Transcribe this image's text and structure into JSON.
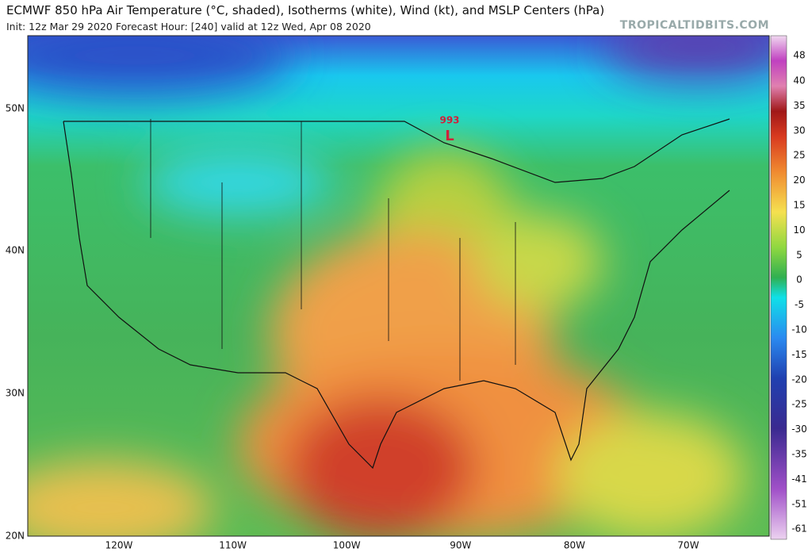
{
  "header": {
    "title": "ECMWF 850 hPa Air Temperature (°C, shaded), Isotherms (white), Wind (kt), and MSLP Centers (hPa)",
    "subtitle": "Init: 12z Mar 29 2020   Forecast Hour: [240]   valid at 12z Wed, Apr 08 2020",
    "watermark": "TROPICALTIDBITS.COM"
  },
  "map": {
    "latitude_labels": [
      "50N",
      "40N",
      "30N",
      "20N"
    ],
    "longitude_labels": [
      "120W",
      "110W",
      "100W",
      "90W",
      "80W",
      "70W"
    ],
    "low_center": {
      "pressure": "993",
      "symbol": "L"
    }
  },
  "colorbar": {
    "labels": [
      48,
      40,
      35,
      30,
      25,
      20,
      15,
      10,
      5,
      0,
      -5,
      -10,
      -15,
      -20,
      -25,
      -30,
      -35,
      -41,
      -51,
      -61
    ]
  }
}
